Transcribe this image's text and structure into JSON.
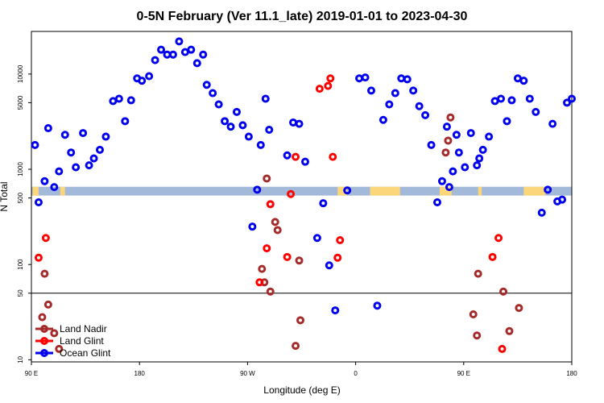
{
  "chart_data": {
    "type": "scatter",
    "title": "0-5N February (Ver 11.1_late)   2019-01-01 to 2023-04-30",
    "xlabel": "Longitude (deg E)",
    "ylabel": "N Total",
    "x_scale": "linear",
    "y_scale": "log",
    "xlim": [
      90,
      540
    ],
    "ylim": [
      9.5,
      28000
    ],
    "x_ticks": [
      {
        "value": 90,
        "label": "90 E"
      },
      {
        "value": 180,
        "label": "180"
      },
      {
        "value": 270,
        "label": "90 W"
      },
      {
        "value": 360,
        "label": "0"
      },
      {
        "value": 450,
        "label": "90 E"
      },
      {
        "value": 540,
        "label": "180"
      }
    ],
    "y_ticks": [
      {
        "value": 10,
        "label": "10"
      },
      {
        "value": 50,
        "label": "50"
      },
      {
        "value": 100,
        "label": "100"
      },
      {
        "value": 500,
        "label": "500"
      },
      {
        "value": 1000,
        "label": "1000"
      },
      {
        "value": 5000,
        "label": "5000"
      },
      {
        "value": 10000,
        "label": "10000"
      }
    ],
    "reference_line_y": 50,
    "legend_position": "bottom-left",
    "colors": {
      "land_nadir": "#a52a2a",
      "land_glint": "#ff0000",
      "ocean_glint": "#0000ee",
      "ocean_band": "#a3b9d9",
      "land_band": "#fcd67a"
    },
    "band": {
      "y_range": [
        530,
        655
      ],
      "land_segments": [
        [
          91,
          96
        ],
        [
          114,
          118
        ],
        [
          345,
          353
        ],
        [
          372,
          397
        ],
        [
          430,
          440
        ],
        [
          462,
          465
        ],
        [
          500,
          518
        ]
      ]
    },
    "series": [
      {
        "name": "Land Nadir",
        "key": "land_nadir",
        "x": [
          99,
          101,
          104,
          109,
          113,
          282,
          284,
          286,
          289,
          293,
          295,
          310,
          313,
          314,
          435,
          437,
          439,
          458,
          461,
          462,
          483,
          488,
          496
        ],
        "y": [
          28,
          80,
          38,
          19,
          13,
          90,
          65,
          800,
          52,
          280,
          230,
          14,
          110,
          26,
          1500,
          2000,
          3500,
          30,
          18,
          80,
          52,
          20,
          35
        ]
      },
      {
        "name": "Land Glint",
        "key": "land_glint",
        "x": [
          96,
          102,
          280,
          286,
          289,
          303,
          306,
          310,
          330,
          337,
          339,
          341,
          345,
          347,
          474,
          479,
          482
        ],
        "y": [
          118,
          190,
          65,
          148,
          430,
          120,
          550,
          1350,
          7000,
          7500,
          9000,
          1350,
          118,
          180,
          120,
          190,
          13
        ]
      },
      {
        "name": "Ocean Glint",
        "key": "ocean_glint",
        "x": [
          93,
          96,
          101,
          104,
          109,
          113,
          118,
          123,
          127,
          133,
          138,
          142,
          147,
          152,
          158,
          163,
          168,
          173,
          178,
          182,
          188,
          193,
          198,
          203,
          208,
          213,
          218,
          223,
          228,
          233,
          236,
          241,
          246,
          251,
          256,
          261,
          266,
          271,
          274,
          278,
          281,
          285,
          288,
          303,
          308,
          313,
          318,
          328,
          333,
          338,
          343,
          353,
          363,
          368,
          373,
          378,
          383,
          388,
          393,
          398,
          403,
          408,
          413,
          418,
          423,
          428,
          432,
          436,
          438,
          441,
          444,
          446,
          451,
          456,
          461,
          463,
          466,
          471,
          476,
          481,
          486,
          490,
          495,
          500,
          505,
          510,
          515,
          520,
          524,
          528,
          532,
          536,
          540
        ],
        "y": [
          1800,
          450,
          750,
          2700,
          650,
          950,
          2300,
          1500,
          1050,
          2400,
          1100,
          1300,
          1600,
          2200,
          5200,
          5500,
          3200,
          5300,
          9000,
          8500,
          9500,
          14000,
          18000,
          16000,
          16000,
          22000,
          17000,
          18000,
          13000,
          16000,
          7700,
          6300,
          4800,
          3200,
          2800,
          4000,
          2900,
          2200,
          250,
          610,
          1800,
          5500,
          2600,
          1400,
          3100,
          3000,
          1200,
          190,
          440,
          98,
          33,
          600,
          9000,
          9200,
          6700,
          37,
          3300,
          4800,
          6300,
          9000,
          8800,
          6700,
          4600,
          3700,
          1800,
          450,
          750,
          2800,
          650,
          950,
          2300,
          1500,
          1050,
          2400,
          1100,
          1300,
          1600,
          2200,
          5200,
          5500,
          3200,
          5300,
          9000,
          8500,
          5500,
          4000,
          350,
          610,
          3000,
          460,
          480,
          5000,
          5500
        ]
      }
    ]
  }
}
